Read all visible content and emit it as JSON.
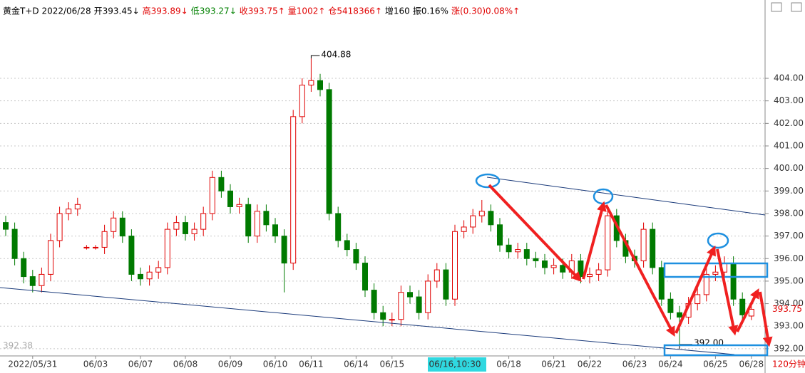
{
  "chart_data": {
    "type": "candlestick",
    "header": [
      {
        "text": "黄金T+D 2022/06/28",
        "color": "#000000"
      },
      {
        "text": "开393.45↓",
        "color": "#000000"
      },
      {
        "text": "高393.89↓",
        "color": "#e00000"
      },
      {
        "text": "低393.27↓",
        "color": "#008000"
      },
      {
        "text": "收393.75↑",
        "color": "#e00000"
      },
      {
        "text": "量1002↑",
        "color": "#e00000"
      },
      {
        "text": "仓5418366↑",
        "color": "#e00000"
      },
      {
        "text": "增160",
        "color": "#000000"
      },
      {
        "text": "振0.16%",
        "color": "#000000"
      },
      {
        "text": "涨(0.30)0.08%↑",
        "color": "#e00000"
      }
    ],
    "categories": [
      null,
      null,
      null,
      "2022/05/31",
      null,
      null,
      null,
      null,
      null,
      null,
      "06/03",
      null,
      null,
      null,
      null,
      "06/07",
      null,
      null,
      null,
      null,
      "06/08",
      null,
      null,
      null,
      null,
      "06/09",
      null,
      null,
      null,
      null,
      "06/10",
      null,
      null,
      null,
      "06/11",
      null,
      null,
      null,
      null,
      "06/14",
      null,
      null,
      null,
      "06/15",
      null,
      null,
      null,
      null,
      null,
      null,
      "06/16,10:30",
      null,
      null,
      null,
      null,
      null,
      "06/18",
      null,
      null,
      null,
      null,
      "06/21",
      null,
      null,
      null,
      "06/22",
      null,
      null,
      null,
      null,
      "06/23",
      null,
      null,
      null,
      "06/24",
      null,
      null,
      null,
      null,
      "06/25",
      null,
      null,
      null,
      "06/28"
    ],
    "open": [
      397.6,
      397.3,
      396.0,
      395.2,
      394.8,
      395.3,
      396.8,
      398.0,
      398.2,
      396.5,
      396.5,
      396.5,
      397.2,
      397.8,
      397.0,
      395.3,
      395.1,
      395.4,
      395.6,
      397.3,
      397.6,
      397.1,
      397.3,
      398.0,
      399.6,
      399.0,
      398.3,
      398.4,
      397.0,
      398.1,
      397.5,
      397.0,
      395.8,
      402.3,
      403.7,
      403.9,
      403.5,
      398.0,
      396.8,
      396.4,
      395.8,
      394.6,
      393.6,
      393.3,
      393.3,
      394.5,
      394.3,
      393.6,
      395.0,
      395.5,
      394.2,
      397.2,
      397.4,
      397.9,
      398.1,
      397.5,
      396.6,
      396.3,
      396.4,
      396.0,
      395.9,
      395.6,
      395.7,
      395.4,
      395.9,
      395.2,
      395.3,
      395.5,
      397.9,
      396.8,
      396.1,
      395.9,
      397.3,
      395.6,
      394.2,
      393.6,
      393.4,
      394.0,
      394.4,
      395.3,
      395.4,
      395.8,
      394.2,
      393.45
    ],
    "high": [
      397.9,
      397.6,
      396.3,
      395.5,
      395.6,
      397.1,
      398.3,
      398.5,
      398.7,
      396.6,
      396.6,
      397.5,
      398.1,
      398.1,
      397.3,
      395.6,
      395.7,
      395.9,
      397.6,
      397.9,
      397.9,
      397.6,
      398.3,
      399.9,
      399.9,
      399.3,
      398.7,
      398.7,
      398.4,
      398.4,
      397.8,
      397.3,
      402.6,
      404.0,
      404.88,
      404.2,
      403.8,
      398.3,
      397.1,
      396.7,
      396.1,
      394.9,
      393.9,
      393.6,
      394.8,
      394.8,
      394.6,
      395.3,
      395.8,
      395.8,
      397.5,
      397.7,
      398.2,
      398.6,
      398.4,
      397.8,
      396.9,
      396.7,
      396.7,
      396.3,
      396.2,
      396.0,
      396.0,
      396.2,
      396.2,
      395.6,
      395.8,
      398.3,
      398.2,
      397.1,
      396.4,
      397.6,
      397.6,
      395.9,
      394.5,
      393.9,
      394.3,
      394.7,
      395.6,
      395.7,
      396.1,
      396.1,
      394.5,
      393.89
    ],
    "low": [
      397.0,
      395.7,
      394.9,
      394.5,
      394.5,
      395.0,
      396.5,
      397.7,
      397.9,
      396.4,
      396.4,
      396.2,
      396.9,
      396.7,
      395.0,
      394.8,
      394.8,
      395.1,
      395.3,
      397.0,
      396.8,
      396.8,
      397.0,
      397.7,
      398.7,
      398.0,
      398.0,
      396.7,
      396.7,
      397.2,
      396.7,
      394.5,
      395.5,
      402.0,
      403.4,
      403.2,
      397.7,
      396.5,
      396.1,
      395.5,
      394.3,
      393.3,
      393.0,
      393.0,
      393.0,
      394.0,
      393.3,
      393.3,
      394.7,
      393.9,
      393.9,
      396.9,
      397.1,
      397.6,
      397.2,
      396.3,
      396.0,
      396.0,
      395.7,
      395.6,
      395.3,
      395.3,
      395.1,
      395.1,
      394.9,
      394.9,
      395.0,
      395.2,
      396.5,
      395.8,
      395.6,
      395.6,
      395.3,
      393.9,
      393.3,
      392.0,
      393.1,
      393.7,
      394.1,
      395.0,
      395.1,
      393.9,
      393.2,
      393.27
    ],
    "close": [
      397.3,
      396.0,
      395.2,
      394.8,
      395.3,
      396.8,
      398.0,
      398.2,
      398.4,
      396.5,
      396.5,
      397.2,
      397.8,
      397.0,
      395.3,
      395.1,
      395.4,
      395.6,
      397.3,
      397.6,
      397.1,
      397.3,
      398.0,
      399.6,
      399.0,
      398.3,
      398.4,
      397.0,
      398.1,
      397.5,
      397.0,
      395.8,
      402.3,
      403.7,
      403.9,
      403.5,
      398.0,
      396.8,
      396.4,
      395.8,
      394.6,
      393.6,
      393.3,
      393.3,
      394.5,
      394.3,
      393.6,
      395.0,
      395.5,
      394.2,
      397.2,
      397.4,
      397.9,
      398.1,
      397.5,
      396.6,
      396.3,
      396.4,
      396.0,
      395.9,
      395.6,
      395.7,
      395.4,
      395.9,
      395.2,
      395.3,
      395.5,
      397.9,
      396.8,
      396.1,
      395.9,
      397.3,
      395.6,
      394.2,
      393.6,
      393.4,
      394.0,
      394.4,
      395.3,
      395.4,
      395.8,
      394.2,
      393.5,
      393.75
    ],
    "up_color": "#e00000",
    "down_color": "#007a00",
    "ylim": [
      391.68,
      407.16
    ],
    "yticks": [
      {
        "value": 392,
        "label": "392.00"
      },
      {
        "value": 393,
        "label": "393.00"
      },
      {
        "value": 394,
        "label": "394.00"
      },
      {
        "value": 395,
        "label": "395.00"
      },
      {
        "value": 396,
        "label": "396.00"
      },
      {
        "value": 397,
        "label": "397.00"
      },
      {
        "value": 398,
        "label": "398.00"
      },
      {
        "value": 399,
        "label": "399.00"
      },
      {
        "value": 400,
        "label": "400.00"
      },
      {
        "value": 401,
        "label": "401.00"
      },
      {
        "value": 402,
        "label": "402.00"
      },
      {
        "value": 403,
        "label": "403.00"
      },
      {
        "value": 404,
        "label": "404.00"
      }
    ],
    "grid": true,
    "min_label": "392.00",
    "corner_label": "392.38",
    "period": "120分钟"
  }
}
